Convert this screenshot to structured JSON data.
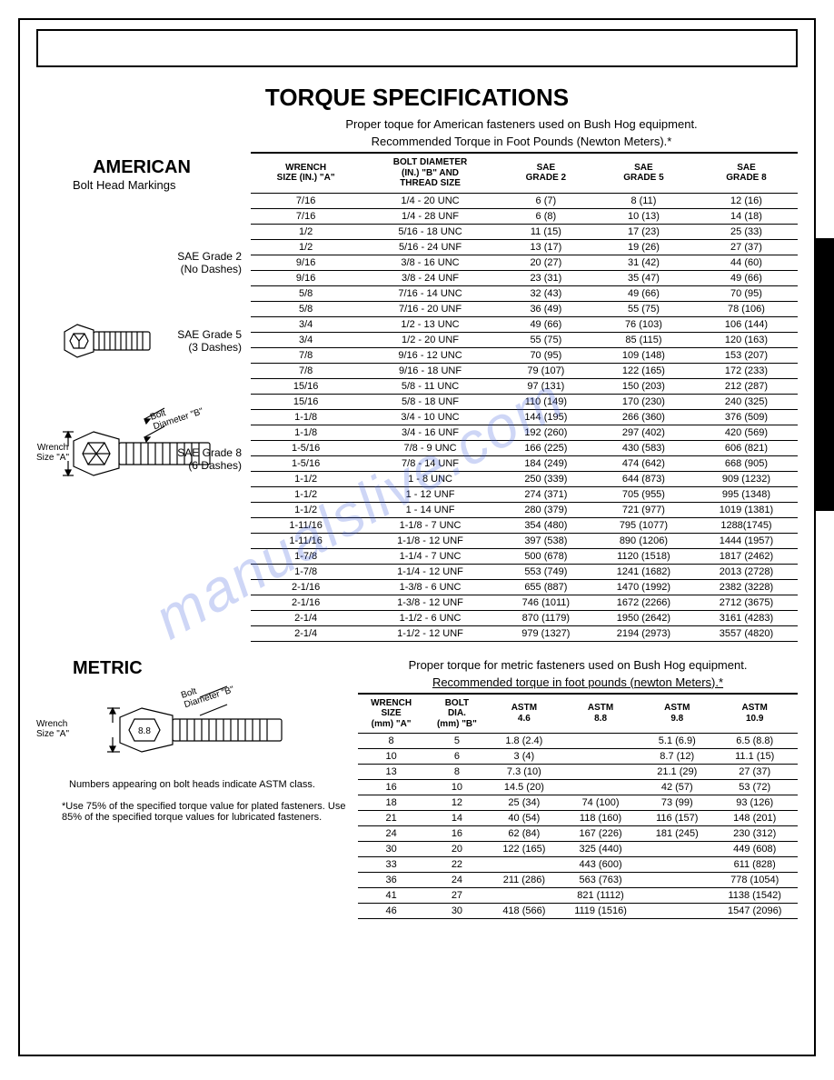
{
  "title": "TORQUE SPECIFICATIONS",
  "american": {
    "heading": "AMERICAN",
    "subheading": "Bolt Head Markings",
    "note1": "Proper toque for American fasteners used on Bush Hog equipment.",
    "note2": "Recommended Torque in Foot Pounds (Newton Meters).*",
    "grade2": "SAE Grade 2",
    "grade2sub": "(No Dashes)",
    "grade5": "SAE Grade 5",
    "grade5sub": "(3 Dashes)",
    "grade8": "SAE Grade 8",
    "grade8sub": "(6 Dashes)",
    "wrench_label": "Wrench",
    "size_label": "Size \"A\"",
    "bolt_label": "Bolt",
    "diam_label": "Diameter \"B\"",
    "headers": {
      "c1a": "WRENCH",
      "c1b": "SIZE (IN.) \"A\"",
      "c2a": "BOLT DIAMETER",
      "c2b": "(IN.) \"B\" AND",
      "c2c": "THREAD SIZE",
      "c3a": "SAE",
      "c3b": "GRADE 2",
      "c4a": "SAE",
      "c4b": "GRADE 5",
      "c5a": "SAE",
      "c5b": "GRADE 8"
    },
    "rows": [
      [
        "7/16",
        "1/4 - 20 UNC",
        "6 (7)",
        "8 (11)",
        "12 (16)"
      ],
      [
        "7/16",
        "1/4 - 28 UNF",
        "6 (8)",
        "10 (13)",
        "14 (18)"
      ],
      [
        "1/2",
        "5/16 - 18 UNC",
        "11 (15)",
        "17 (23)",
        "25 (33)"
      ],
      [
        "1/2",
        "5/16 - 24 UNF",
        "13 (17)",
        "19 (26)",
        "27 (37)"
      ],
      [
        "9/16",
        "3/8 - 16 UNC",
        "20 (27)",
        "31 (42)",
        "44 (60)"
      ],
      [
        "9/16",
        "3/8 - 24 UNF",
        "23 (31)",
        "35 (47)",
        "49 (66)"
      ],
      [
        "5/8",
        "7/16 - 14 UNC",
        "32 (43)",
        "49 (66)",
        "70 (95)"
      ],
      [
        "5/8",
        "7/16 - 20 UNF",
        "36 (49)",
        "55 (75)",
        "78 (106)"
      ],
      [
        "3/4",
        "1/2 - 13 UNC",
        "49 (66)",
        "76 (103)",
        "106 (144)"
      ],
      [
        "3/4",
        "1/2 - 20 UNF",
        "55 (75)",
        "85 (115)",
        "120 (163)"
      ],
      [
        "7/8",
        "9/16 - 12 UNC",
        "70 (95)",
        "109 (148)",
        "153 (207)"
      ],
      [
        "7/8",
        "9/16 - 18 UNF",
        "79 (107)",
        "122 (165)",
        "172 (233)"
      ],
      [
        "15/16",
        "5/8 - 11 UNC",
        "97 (131)",
        "150 (203)",
        "212 (287)"
      ],
      [
        "15/16",
        "5/8 - 18 UNF",
        "110 (149)",
        "170 (230)",
        "240 (325)"
      ],
      [
        "1-1/8",
        "3/4 - 10 UNC",
        "144 (195)",
        "266 (360)",
        "376 (509)"
      ],
      [
        "1-1/8",
        "3/4 - 16 UNF",
        "192 (260)",
        "297 (402)",
        "420 (569)"
      ],
      [
        "1-5/16",
        "7/8 - 9 UNC",
        "166 (225)",
        "430 (583)",
        "606 (821)"
      ],
      [
        "1-5/16",
        "7/8 - 14 UNF",
        "184 (249)",
        "474 (642)",
        "668 (905)"
      ],
      [
        "1-1/2",
        "1 - 8 UNC",
        "250 (339)",
        "644 (873)",
        "909 (1232)"
      ],
      [
        "1-1/2",
        "1 - 12 UNF",
        "274 (371)",
        "705 (955)",
        "995 (1348)"
      ],
      [
        "1-1/2",
        "1 - 14 UNF",
        "280 (379)",
        "721 (977)",
        "1019 (1381)"
      ],
      [
        "1-11/16",
        "1-1/8 - 7 UNC",
        "354 (480)",
        "795 (1077)",
        "1288(1745)"
      ],
      [
        "1-11/16",
        "1-1/8 - 12 UNF",
        "397 (538)",
        "890 (1206)",
        "1444 (1957)"
      ],
      [
        "1-7/8",
        "1-1/4 - 7 UNC",
        "500 (678)",
        "1120 (1518)",
        "1817 (2462)"
      ],
      [
        "1-7/8",
        "1-1/4 - 12 UNF",
        "553 (749)",
        "1241 (1682)",
        "2013 (2728)"
      ],
      [
        "2-1/16",
        "1-3/8 - 6 UNC",
        "655 (887)",
        "1470 (1992)",
        "2382 (3228)"
      ],
      [
        "2-1/16",
        "1-3/8 - 12 UNF",
        "746 (1011)",
        "1672 (2266)",
        "2712 (3675)"
      ],
      [
        "2-1/4",
        "1-1/2 - 6 UNC",
        "870 (1179)",
        "1950 (2642)",
        "3161 (4283)"
      ],
      [
        "2-1/4",
        "1-1/2 - 12 UNF",
        "979 (1327)",
        "2194 (2973)",
        "3557 (4820)"
      ]
    ]
  },
  "metric": {
    "heading": "METRIC",
    "note1": "Proper torque for metric fasteners used on Bush Hog equipment.",
    "note2": "Recommended torque in foot pounds (newton Meters).*",
    "caption": "Numbers appearing on bolt heads indicate ASTM class.",
    "mark88": "8.8",
    "headers": {
      "c1a": "WRENCH",
      "c1b": "SIZE",
      "c1c": "(mm) \"A\"",
      "c2a": "BOLT",
      "c2b": "DIA.",
      "c2c": "(mm) \"B\"",
      "c3a": "ASTM",
      "c3b": "4.6",
      "c4a": "ASTM",
      "c4b": "8.8",
      "c5a": "ASTM",
      "c5b": "9.8",
      "c6a": "ASTM",
      "c6b": "10.9"
    },
    "rows": [
      [
        "8",
        "5",
        "1.8 (2.4)",
        "",
        "5.1 (6.9)",
        "6.5 (8.8)"
      ],
      [
        "10",
        "6",
        "3 (4)",
        "",
        "8.7 (12)",
        "11.1 (15)"
      ],
      [
        "13",
        "8",
        "7.3 (10)",
        "",
        "21.1 (29)",
        "27 (37)"
      ],
      [
        "16",
        "10",
        "14.5 (20)",
        "",
        "42 (57)",
        "53 (72)"
      ],
      [
        "18",
        "12",
        "25 (34)",
        "74 (100)",
        "73 (99)",
        "93 (126)"
      ],
      [
        "21",
        "14",
        "40 (54)",
        "118 (160)",
        "116 (157)",
        "148 (201)"
      ],
      [
        "24",
        "16",
        "62 (84)",
        "167 (226)",
        "181 (245)",
        "230 (312)"
      ],
      [
        "30",
        "20",
        "122 (165)",
        "325 (440)",
        "",
        "449 (608)"
      ],
      [
        "33",
        "22",
        "",
        "443 (600)",
        "",
        "611 (828)"
      ],
      [
        "36",
        "24",
        "211 (286)",
        "563 (763)",
        "",
        "778 (1054)"
      ],
      [
        "41",
        "27",
        "",
        "821 (1112)",
        "",
        "1138 (1542)"
      ],
      [
        "46",
        "30",
        "418 (566)",
        "1119 (1516)",
        "",
        "1547 (2096)"
      ]
    ]
  },
  "footnote": "*Use 75% of the specified torque value for plated fasteners.  Use 85% of the specified torque values for lubricated fasteners.",
  "watermark": "manualslive.com"
}
